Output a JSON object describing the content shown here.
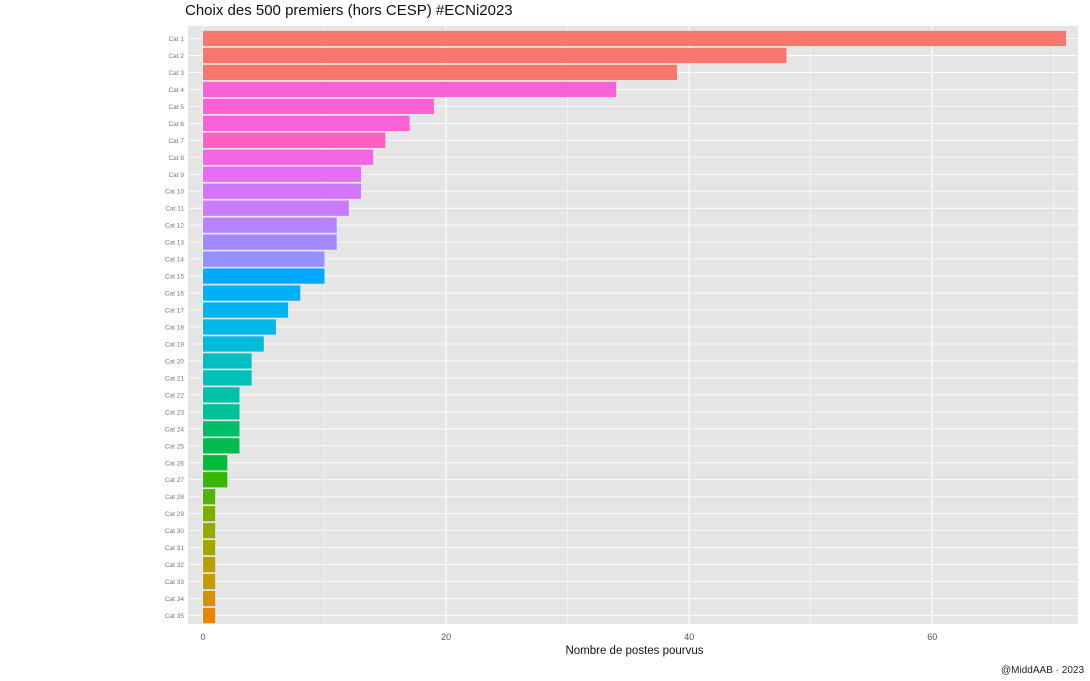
{
  "chart_data": {
    "type": "bar",
    "orientation": "horizontal",
    "title": "Choix des 500 premiers (hors CESP) #ECNi2023",
    "xlabel": "Nombre de postes pourvus",
    "ylabel": "",
    "credit": "@MiddAAB · 2023",
    "x_ticks": [
      0,
      20,
      40,
      60
    ],
    "x_tick_labels": [
      "0",
      "20",
      "40",
      "60"
    ],
    "xlim": [
      0,
      71
    ],
    "grid": true,
    "background": "#e5e5e5",
    "legend": "none",
    "categories": [
      "Cat 1",
      "Cat 2",
      "Cat 3",
      "Cat 4",
      "Cat 5",
      "Cat 6",
      "Cat 7",
      "Cat 8",
      "Cat 9",
      "Cat 10",
      "Cat 11",
      "Cat 12",
      "Cat 13",
      "Cat 14",
      "Cat 15",
      "Cat 16",
      "Cat 17",
      "Cat 18",
      "Cat 19",
      "Cat 20",
      "Cat 21",
      "Cat 22",
      "Cat 23",
      "Cat 24",
      "Cat 25",
      "Cat 26",
      "Cat 27",
      "Cat 28",
      "Cat 29",
      "Cat 30",
      "Cat 31",
      "Cat 32",
      "Cat 33",
      "Cat 34",
      "Cat 35"
    ],
    "values": [
      71,
      48,
      39,
      34,
      19,
      17,
      15,
      14,
      13,
      13,
      12,
      11,
      11,
      10,
      10,
      8,
      7,
      6,
      5,
      4,
      4,
      3,
      3,
      3,
      3,
      2,
      2,
      1,
      1,
      1,
      1,
      1,
      1,
      1,
      1
    ],
    "colors": [
      "#f8766d",
      "#f8766d",
      "#f8766d",
      "#fb61d7",
      "#fb61d7",
      "#fb61d7",
      "#ff61c3",
      "#f564e3",
      "#e76bf3",
      "#d575fe",
      "#c77cff",
      "#b983ff",
      "#a58aff",
      "#9590ff",
      "#00a9ff",
      "#00b0f6",
      "#00b4f0",
      "#00b8e7",
      "#00bcd8",
      "#00bfc4",
      "#00c0b8",
      "#00c1a9",
      "#00c19a",
      "#00be67",
      "#00bb4e",
      "#00ba38",
      "#39b600",
      "#53b400",
      "#7cae00",
      "#93aa00",
      "#a3a500",
      "#b79f00",
      "#c49a00",
      "#d39200",
      "#e58700"
    ]
  }
}
